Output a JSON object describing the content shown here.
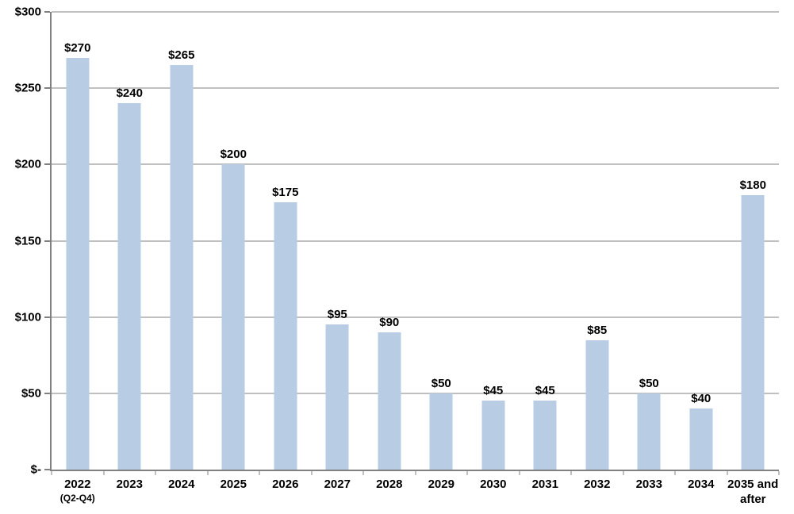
{
  "chart_data": {
    "type": "bar",
    "title": "",
    "xlabel": "",
    "ylabel": "",
    "ylim": [
      0,
      300
    ],
    "grid": true,
    "legend": "none",
    "categories": [
      {
        "line1": "2022",
        "line2": "(Q2-Q4)"
      },
      {
        "line1": "2023",
        "line2": ""
      },
      {
        "line1": "2024",
        "line2": ""
      },
      {
        "line1": "2025",
        "line2": ""
      },
      {
        "line1": "2026",
        "line2": ""
      },
      {
        "line1": "2027",
        "line2": ""
      },
      {
        "line1": "2028",
        "line2": ""
      },
      {
        "line1": "2029",
        "line2": ""
      },
      {
        "line1": "2030",
        "line2": ""
      },
      {
        "line1": "2031",
        "line2": ""
      },
      {
        "line1": "2032",
        "line2": ""
      },
      {
        "line1": "2033",
        "line2": ""
      },
      {
        "line1": "2034",
        "line2": ""
      },
      {
        "line1": "2035 and",
        "line2": "after"
      }
    ],
    "values": [
      270,
      240,
      265,
      200,
      175,
      95,
      90,
      50,
      45,
      45,
      85,
      50,
      40,
      180
    ],
    "bar_labels": [
      "$270",
      "$240",
      "$265",
      "$200",
      "$175",
      "$95",
      "$90",
      "$50",
      "$45",
      "$45",
      "$85",
      "$50",
      "$40",
      "$180"
    ],
    "y_ticks": [
      {
        "value": 0,
        "label": "$-"
      },
      {
        "value": 50,
        "label": "$50"
      },
      {
        "value": 100,
        "label": "$100"
      },
      {
        "value": 150,
        "label": "$150"
      },
      {
        "value": 200,
        "label": "$200"
      },
      {
        "value": 250,
        "label": "$250"
      },
      {
        "value": 300,
        "label": "$300"
      }
    ],
    "colors": {
      "bar_fill": "#b8cce4",
      "gridline": "#808080",
      "axis": "#808080",
      "label_text": "#000000",
      "background": "#ffffff"
    }
  }
}
